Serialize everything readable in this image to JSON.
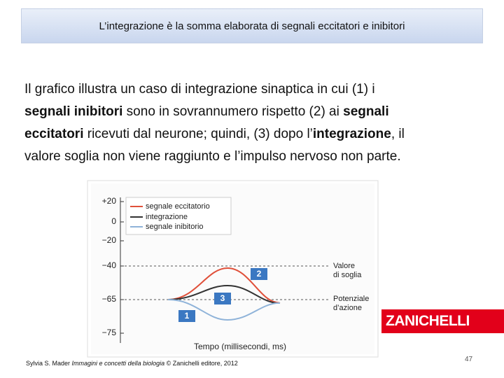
{
  "header": {
    "title": "L’integrazione è la somma elaborata di segnali eccitatori e inibitori"
  },
  "paragraph": {
    "lines": [
      {
        "runs": [
          {
            "text": "Il grafico illustra un caso di integrazione sinaptica in cui (1) i"
          }
        ]
      },
      {
        "runs": [
          {
            "text": "segnali inibitori",
            "bold": true
          },
          {
            "text": " sono in sovrannumero rispetto (2) ai "
          },
          {
            "text": "segnali",
            "bold": true
          }
        ]
      },
      {
        "runs": [
          {
            "text": "eccitatori",
            "bold": true
          },
          {
            "text": " ricevuti dal neurone; quindi, (3) dopo l’"
          },
          {
            "text": "integrazione",
            "bold": true
          },
          {
            "text": ", il"
          }
        ]
      },
      {
        "runs": [
          {
            "text": "valore soglia non viene raggiunto e l’impulso nervoso non parte."
          }
        ]
      }
    ]
  },
  "figure": {
    "yticks": [
      "+20",
      "0",
      "−20",
      "−40",
      "−65",
      "−75"
    ],
    "legend": [
      "segnale eccitatorio",
      "integrazione",
      "segnale inibitorio"
    ],
    "threshold": [
      "Valore",
      "di soglia"
    ],
    "potential": [
      "Potenziale",
      "d’azione"
    ],
    "badges": [
      "1",
      "2",
      "3"
    ],
    "xlabel": "Tempo (millisecondi, ms)"
  },
  "logo": "ZANICHELLI",
  "footer": {
    "runs": [
      {
        "text": "Sylvia S. Mader "
      },
      {
        "text": "Immagini e concetti della biologia",
        "italic": true
      },
      {
        "text": " © Zanichelli editore, 2012"
      }
    ]
  },
  "page_number": "47"
}
